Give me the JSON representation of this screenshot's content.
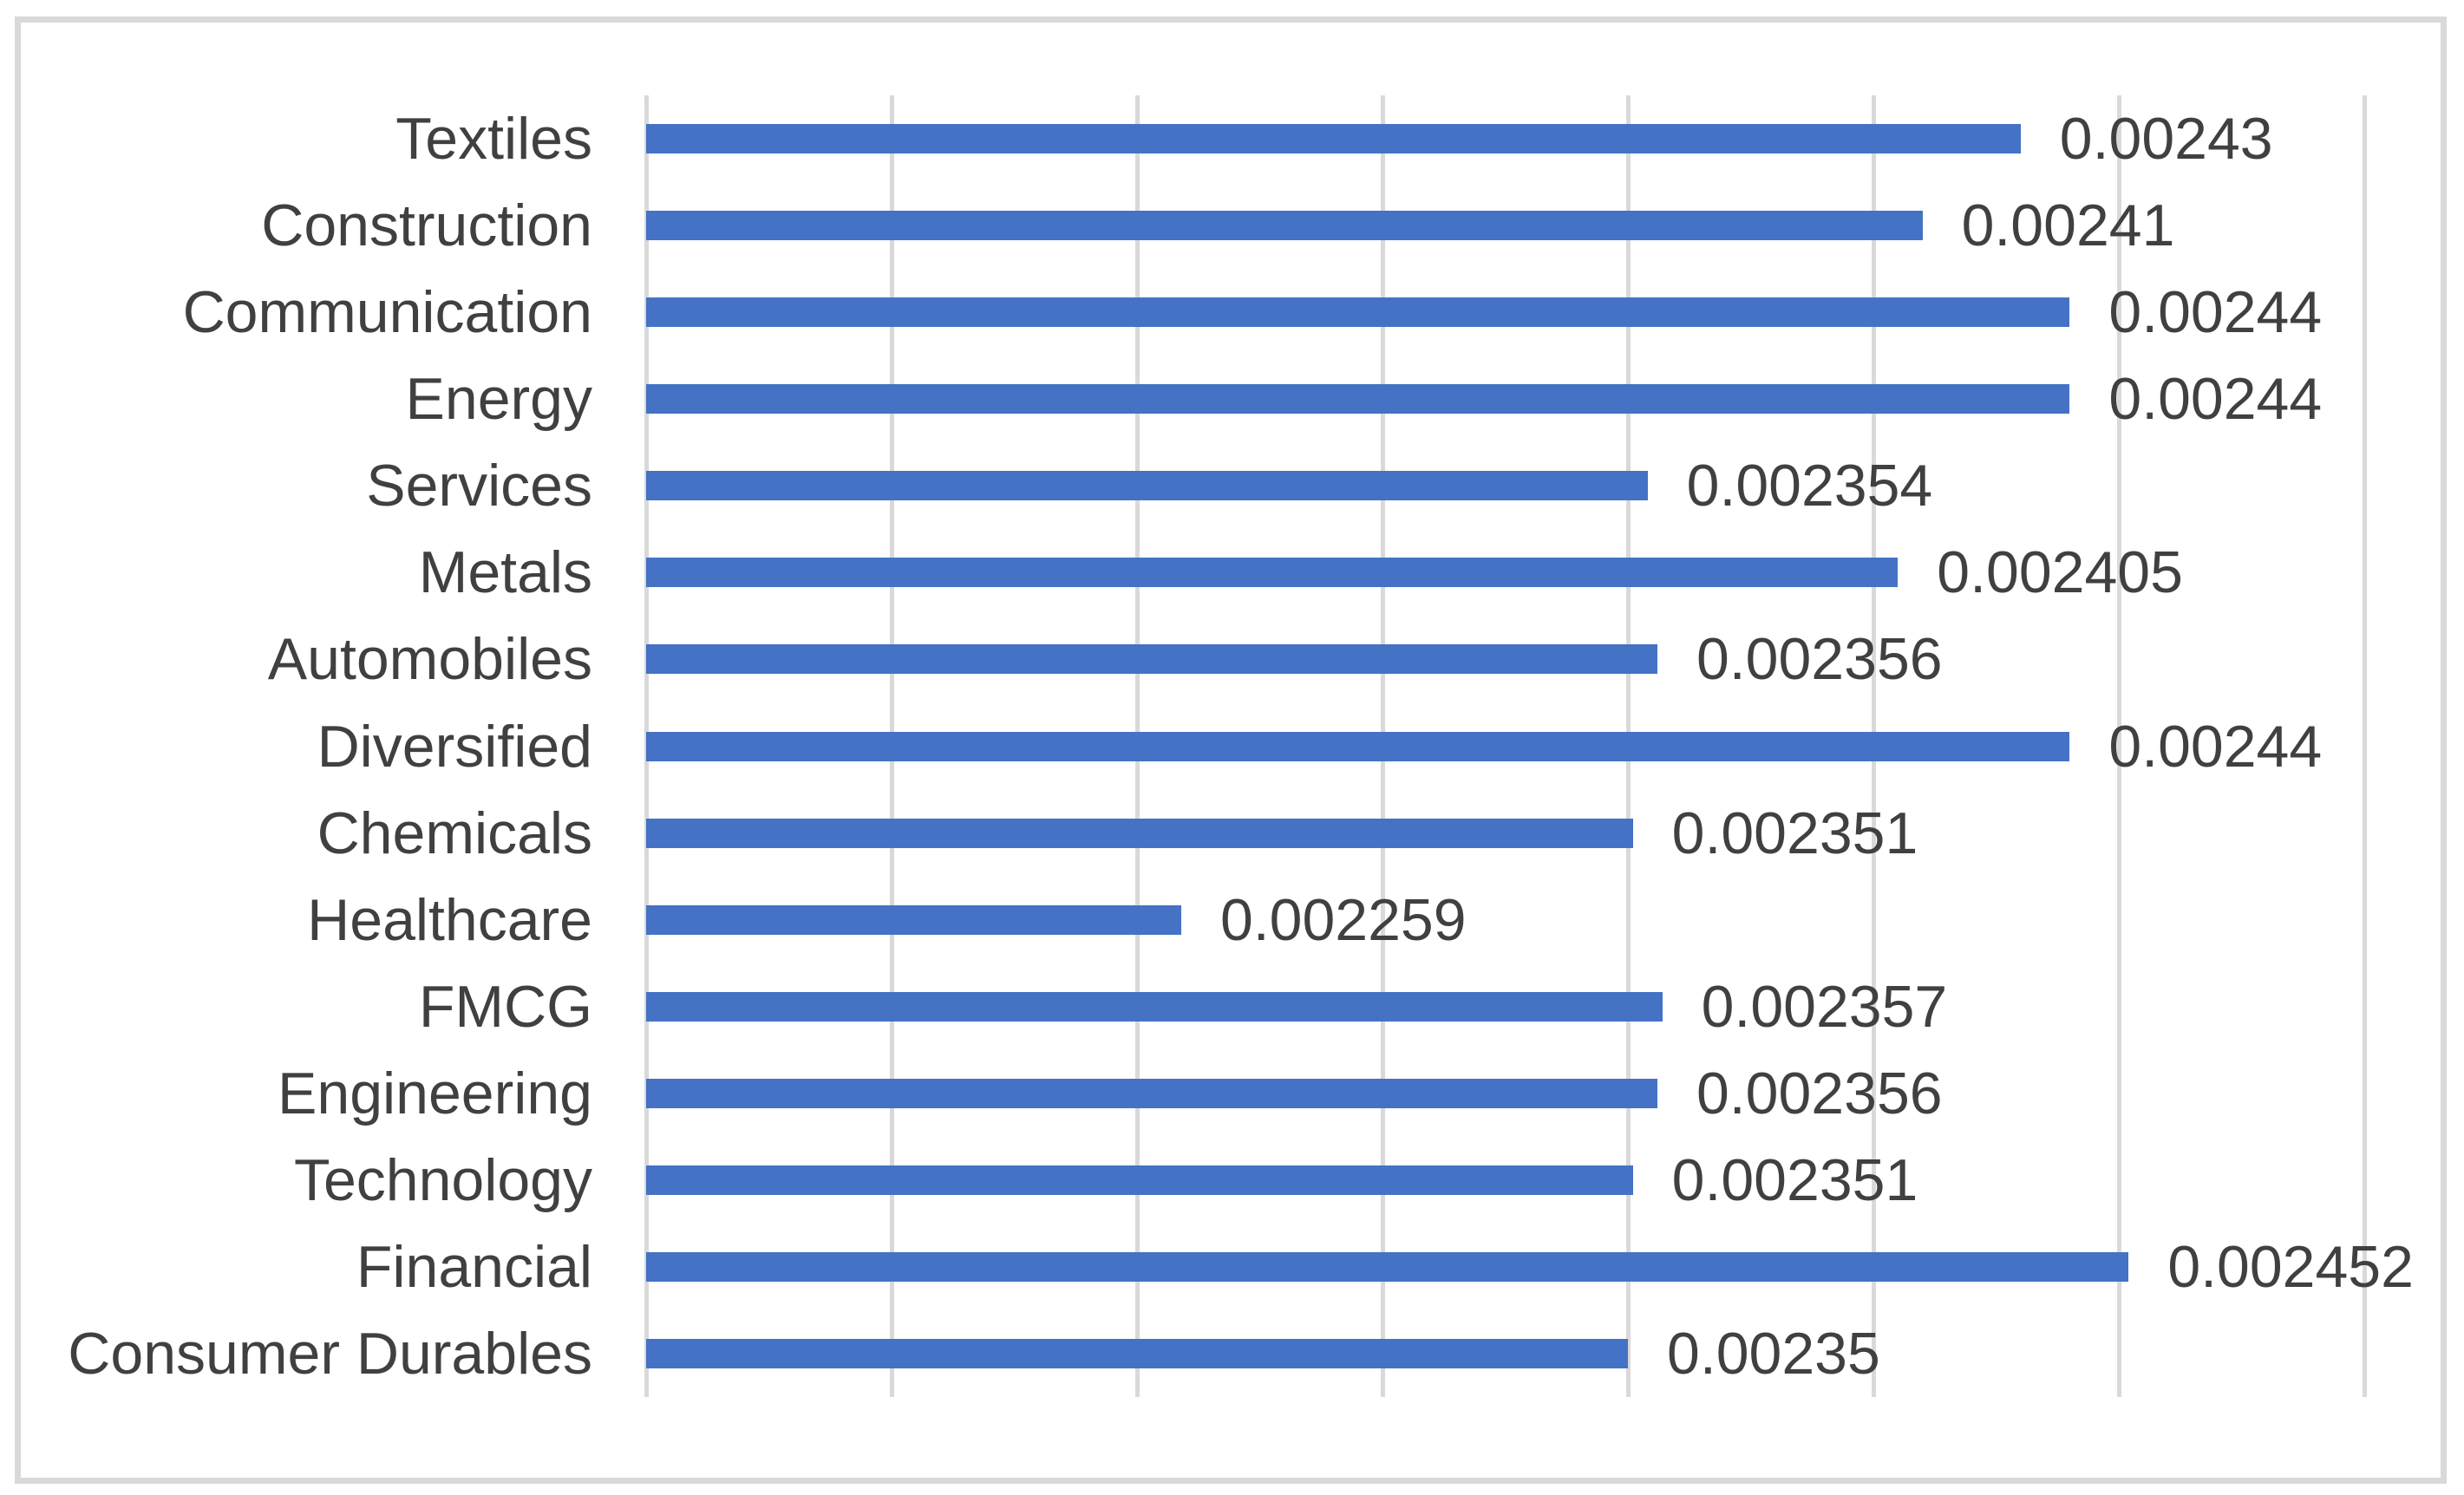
{
  "figure": {
    "background": "#ffffff",
    "frame_color": "#d9d9d9"
  },
  "chart_data": {
    "type": "bar",
    "orientation": "horizontal",
    "title": "",
    "xlabel": "",
    "ylabel": "",
    "grid": true,
    "legend": false,
    "axis_tick_labels_visible": false,
    "categories": [
      "Textiles",
      "Construction",
      "Communication",
      "Energy",
      "Services",
      "Metals",
      "Automobiles",
      "Diversified",
      "Chemicals",
      "Healthcare",
      "FMCG",
      "Engineering",
      "Technology",
      "Financial",
      "Consumer Durables"
    ],
    "values": [
      0.00243,
      0.00241,
      0.00244,
      0.00244,
      0.002354,
      0.002405,
      0.002356,
      0.00244,
      0.002351,
      0.002259,
      0.002357,
      0.002356,
      0.002351,
      0.002452,
      0.00235
    ],
    "data_labels": [
      "0.00243",
      "0.00241",
      "0.00244",
      "0.00244",
      "0.002354",
      "0.002405",
      "0.002356",
      "0.00244",
      "0.002351",
      "0.002259",
      "0.002357",
      "0.002356",
      "0.002351",
      "0.002452",
      "0.00235"
    ],
    "xlim": [
      0.00215,
      0.0025
    ],
    "gridline_step": 5e-05,
    "bar_color": "#4472c4",
    "gridline_color": "#d9d9d9",
    "label_color": "#404040"
  }
}
